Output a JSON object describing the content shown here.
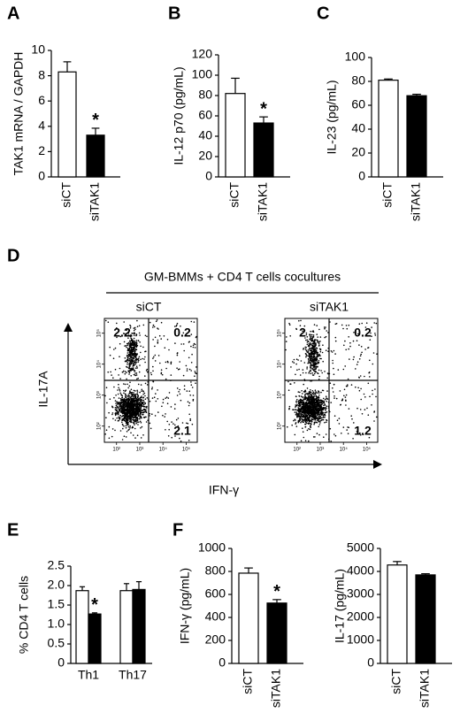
{
  "chart_data": [
    {
      "type": "bar",
      "panel": "A",
      "ylabel": "TAK1 mRNA / GAPDH",
      "categories": [
        "siCT",
        "siTAK1"
      ],
      "values": [
        8.3,
        3.3
      ],
      "errors": [
        0.8,
        0.55
      ],
      "colors": [
        "#ffffff",
        "#000000"
      ],
      "ylim": [
        0,
        10
      ],
      "yticks": [
        0,
        2,
        4,
        6,
        8,
        10
      ],
      "annotation": "*"
    },
    {
      "type": "bar",
      "panel": "B",
      "ylabel": "IL-12 p70 (pg/mL)",
      "categories": [
        "siCT",
        "siTAK1"
      ],
      "values": [
        82,
        53
      ],
      "errors": [
        15,
        6
      ],
      "colors": [
        "#ffffff",
        "#000000"
      ],
      "ylim": [
        0,
        120
      ],
      "yticks": [
        0,
        20,
        40,
        60,
        80,
        100,
        120
      ],
      "annotation": "*"
    },
    {
      "type": "bar",
      "panel": "C",
      "ylabel": "IL-23 (pg/mL)",
      "categories": [
        "siCT",
        "siTAK1"
      ],
      "values": [
        81,
        68
      ],
      "errors": [
        1,
        1.2
      ],
      "colors": [
        "#ffffff",
        "#000000"
      ],
      "ylim": [
        0,
        100
      ],
      "yticks": [
        0,
        20,
        40,
        60,
        80,
        100
      ]
    },
    {
      "type": "flow",
      "panel": "D",
      "title": "GM-BMMs + CD4 T cells cocultures",
      "xlabel": "IFN-γ",
      "ylabel": "IL-17A",
      "log": true,
      "xlim": [
        30,
        300000
      ],
      "ylim": [
        30,
        300000
      ],
      "xticks": [
        {
          "value": 100,
          "label": "10²"
        },
        {
          "value": 1000,
          "label": "10³"
        },
        {
          "value": 10000,
          "label": "10⁴"
        },
        {
          "value": 100000,
          "label": "10⁵"
        }
      ],
      "yticks": [
        {
          "value": 100,
          "label": "10²"
        },
        {
          "value": 1000,
          "label": "10³"
        },
        {
          "value": 10000,
          "label": "10⁴"
        },
        {
          "value": 100000,
          "label": "10⁵"
        }
      ],
      "plots": [
        {
          "name": "siCT",
          "upper_left": 2.2,
          "upper_right": 0.2,
          "lower_right": 2.1
        },
        {
          "name": "siTAK1",
          "upper_left": 2.0,
          "upper_right": 0.2,
          "lower_right": 1.2
        }
      ]
    },
    {
      "type": "grouped_bar",
      "panel": "E",
      "ylabel": "% CD4 T cells",
      "categories": [
        "Th1",
        "Th17"
      ],
      "series": [
        {
          "color": "#ffffff",
          "values": [
            1.87,
            1.87
          ],
          "errors": [
            0.1,
            0.18
          ]
        },
        {
          "color": "#000000",
          "values": [
            1.27,
            1.9
          ],
          "errors": [
            0.03,
            0.2
          ]
        }
      ],
      "ylim": [
        0,
        2.5
      ],
      "yticks": [
        0,
        0.5,
        {
          "value": 1,
          "label": "1.0"
        },
        1.5,
        {
          "value": 2,
          "label": "2.0"
        },
        2.5
      ],
      "annotation": "*"
    },
    {
      "type": "bar",
      "panel": "F",
      "ylabel": "IFN-γ (pg/mL)",
      "categories": [
        "siCT",
        "siTAK1"
      ],
      "values": [
        785,
        525
      ],
      "errors": [
        45,
        30
      ],
      "colors": [
        "#ffffff",
        "#000000"
      ],
      "ylim": [
        0,
        1000
      ],
      "yticks": [
        0,
        200,
        400,
        600,
        800,
        1000
      ],
      "annotation": "*"
    },
    {
      "type": "bar",
      "ylabel": "IL-17 (pg/mL)",
      "categories": [
        "siCT",
        "siTAK1"
      ],
      "values": [
        4280,
        3850
      ],
      "errors": [
        150,
        50
      ],
      "colors": [
        "#ffffff",
        "#000000"
      ],
      "ylim": [
        0,
        5000
      ],
      "yticks": [
        0,
        1000,
        2000,
        3000,
        4000,
        5000
      ]
    }
  ]
}
